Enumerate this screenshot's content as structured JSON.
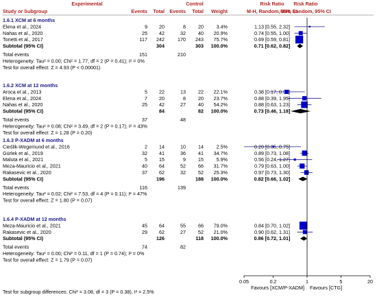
{
  "chart_data": {
    "type": "forest",
    "header": {
      "col_study": "Study or Subgroup",
      "group1": "Experimental",
      "group2": "Control",
      "col_events1": "Events",
      "col_total1": "Total",
      "col_events2": "Events",
      "col_total2": "Total",
      "col_weight": "Weight",
      "col_rr_top": "Risk Ratio",
      "col_rr_method": "M-H, Random, 95% CI",
      "col_plot_top": "Risk Ratio",
      "col_plot_method": "M-H, Random, 95% CI"
    },
    "x_axis": {
      "scale": "log",
      "ticks": [
        0.05,
        0.2,
        1,
        5,
        20
      ],
      "tick_labels": [
        "0.05",
        "0.2",
        "1",
        "5",
        "20"
      ],
      "left_label": "Favours [XCM/P-XADM]",
      "right_label": "Favours [CTG]",
      "null_line": 1
    },
    "subgroups": [
      {
        "title": "1.6.1 XCM at 6 months",
        "studies": [
          {
            "name": "Elena et al., 2024",
            "e1": "9",
            "n1": "20",
            "e2": "8",
            "n2": "20",
            "weight": "3.4%",
            "ci_text": "1.13 [0.55, 2.32]",
            "rr": 1.13,
            "lo": 0.55,
            "hi": 2.32
          },
          {
            "name": "Nahas et al., 2020",
            "e1": "25",
            "n1": "42",
            "e2": "32",
            "n2": "40",
            "weight": "20.9%",
            "ci_text": "0.74 [0.55, 1.00]",
            "rr": 0.74,
            "lo": 0.55,
            "hi": 1.0
          },
          {
            "name": "Tonetti et al., 2017",
            "e1": "117",
            "n1": "242",
            "e2": "170",
            "n2": "243",
            "weight": "75.7%",
            "ci_text": "0.69 [0.59, 0.81]",
            "rr": 0.69,
            "lo": 0.59,
            "hi": 0.81
          }
        ],
        "subtotal": {
          "label": "Subtotal (95% CI)",
          "n1": "304",
          "n2": "303",
          "weight": "100.0%",
          "ci_text": "0.71 [0.62, 0.82]",
          "rr": 0.71,
          "lo": 0.62,
          "hi": 0.82
        },
        "total_events": {
          "label": "Total events",
          "e1": "151",
          "e2": "210"
        },
        "heterogeneity": "Heterogeneity: Tau² = 0.00; Chi² = 1.77, df = 2 (P = 0.41); I² = 0%",
        "overall_effect": "Test for overall effect: Z = 4.93 (P < 0.00001)"
      },
      {
        "title": "1.6.2 XCM at 12 months",
        "studies": [
          {
            "name": "Aroca et al., 2013",
            "e1": "5",
            "n1": "22",
            "e2": "13",
            "n2": "22",
            "weight": "22.1%",
            "ci_text": "0.38 [0.17, 0.90]",
            "rr": 0.38,
            "lo": 0.17,
            "hi": 0.9
          },
          {
            "name": "Elena et al., 2024",
            "e1": "7",
            "n1": "20",
            "e2": "8",
            "n2": "20",
            "weight": "23.7%",
            "ci_text": "0.88 [0.39, 1.95]",
            "rr": 0.88,
            "lo": 0.39,
            "hi": 1.95
          },
          {
            "name": "Nahas et al., 2020",
            "e1": "25",
            "n1": "42",
            "e2": "27",
            "n2": "40",
            "weight": "54.2%",
            "ci_text": "0.88 [0.63, 1.23]",
            "rr": 0.88,
            "lo": 0.63,
            "hi": 1.23
          }
        ],
        "subtotal": {
          "label": "Subtotal (95% CI)",
          "n1": "84",
          "n2": "82",
          "weight": "100.0%",
          "ci_text": "0.73 [0.46, 1.18]",
          "rr": 0.73,
          "lo": 0.46,
          "hi": 1.18
        },
        "total_events": {
          "label": "Total events",
          "e1": "37",
          "e2": "48"
        },
        "heterogeneity": "Heterogeneity: Tau² = 0.08; Chi² = 3.49, df = 2 (P = 0.17); I² = 43%",
        "overall_effect": "Test for overall effect: Z = 1.28 (P = 0.20)"
      },
      {
        "title": "1.6.3 P-XADM at 6 months",
        "studies": [
          {
            "name": "Cieślik-Wegemund et al., 2016",
            "e1": "2",
            "n1": "14",
            "e2": "10",
            "n2": "14",
            "weight": "2.5%",
            "ci_text": "0.20 [0.05, 0.75]",
            "rr": 0.2,
            "lo": 0.05,
            "hi": 0.75
          },
          {
            "name": "Gürlek et al., 2019",
            "e1": "32",
            "n1": "41",
            "e2": "36",
            "n2": "41",
            "weight": "34.7%",
            "ci_text": "0.89 [0.73, 1.08]",
            "rr": 0.89,
            "lo": 0.73,
            "hi": 1.08
          },
          {
            "name": "Maluta et al., 2021",
            "e1": "5",
            "n1": "15",
            "e2": "9",
            "n2": "15",
            "weight": "5.9%",
            "ci_text": "0.56 [0.24, 1.27]",
            "rr": 0.56,
            "lo": 0.24,
            "hi": 1.27
          },
          {
            "name": "Meza-Mauricio et al., 2021",
            "e1": "40",
            "n1": "64",
            "e2": "52",
            "n2": "66",
            "weight": "31.7%",
            "ci_text": "0.79 [0.63, 1.00]",
            "rr": 0.79,
            "lo": 0.63,
            "hi": 1.0
          },
          {
            "name": "Rakasevic et al., 2020",
            "e1": "37",
            "n1": "62",
            "e2": "32",
            "n2": "52",
            "weight": "25.3%",
            "ci_text": "0.97 [0.73, 1.30]",
            "rr": 0.97,
            "lo": 0.73,
            "hi": 1.3
          }
        ],
        "subtotal": {
          "label": "Subtotal (95% CI)",
          "n1": "196",
          "n2": "188",
          "weight": "100.0%",
          "ci_text": "0.82 [0.66, 1.02]",
          "rr": 0.82,
          "lo": 0.66,
          "hi": 1.02
        },
        "total_events": {
          "label": "Total events",
          "e1": "116",
          "e2": "139"
        },
        "heterogeneity": "Heterogeneity: Tau² = 0.02; Chi² = 7.53, df = 4 (P = 0.11); I² = 47%",
        "overall_effect": "Test for overall effect: Z = 1.80 (P = 0.07)"
      },
      {
        "title": "1.6.4 P-XADM at 12 months",
        "studies": [
          {
            "name": "Meza-Mauricio et al., 2021",
            "e1": "45",
            "n1": "64",
            "e2": "55",
            "n2": "66",
            "weight": "79.0%",
            "ci_text": "0.84 [0.70, 1.02]",
            "rr": 0.84,
            "lo": 0.7,
            "hi": 1.02
          },
          {
            "name": "Rakasevic et al., 2020",
            "e1": "29",
            "n1": "62",
            "e2": "27",
            "n2": "52",
            "weight": "21.0%",
            "ci_text": "0.90 [0.62, 1.31]",
            "rr": 0.9,
            "lo": 0.62,
            "hi": 1.31
          }
        ],
        "subtotal": {
          "label": "Subtotal (95% CI)",
          "n1": "126",
          "n2": "118",
          "weight": "100.0%",
          "ci_text": "0.86 [0.72, 1.01]",
          "rr": 0.86,
          "lo": 0.72,
          "hi": 1.01
        },
        "total_events": {
          "label": "Total events",
          "e1": "74",
          "e2": "82"
        },
        "heterogeneity": "Heterogeneity: Tau² = 0.00; Chi² = 0.11, df = 1 (P = 0.74); I² = 0%",
        "overall_effect": "Test for overall effect: Z = 1.79 (P = 0.07)"
      }
    ],
    "subgroup_differences": "Test for subgroup differences: Chi² = 3.08, df = 3 (P = 0.38), I² = 2.5%",
    "colors": {
      "square": "#0000cc",
      "diamond": "#000000",
      "header_text": "#b22222",
      "subgroup_text": "#1a1a8c"
    }
  }
}
